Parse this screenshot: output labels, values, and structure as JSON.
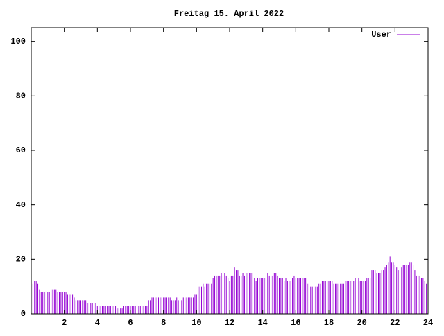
{
  "chart_data": {
    "type": "impulse",
    "title": "Freitag 15. April 2022",
    "series": [
      {
        "name": "User",
        "color": "#9400d3",
        "x": [
          0,
          0.1,
          0.2,
          0.3,
          0.4,
          0.5,
          0.6,
          0.7,
          0.8,
          0.9,
          1,
          1.1,
          1.2,
          1.3,
          1.4,
          1.5,
          1.6,
          1.7,
          1.8,
          1.9,
          2,
          2.1,
          2.2,
          2.3,
          2.4,
          2.5,
          2.6,
          2.7,
          2.8,
          2.9,
          3,
          3.1,
          3.2,
          3.3,
          3.4,
          3.5,
          3.6,
          3.7,
          3.8,
          3.9,
          4,
          4.1,
          4.2,
          4.3,
          4.4,
          4.5,
          4.6,
          4.7,
          4.8,
          4.9,
          5,
          5.1,
          5.2,
          5.3,
          5.4,
          5.5,
          5.6,
          5.7,
          5.8,
          5.9,
          6,
          6.1,
          6.2,
          6.3,
          6.4,
          6.5,
          6.6,
          6.7,
          6.8,
          6.9,
          7,
          7.1,
          7.2,
          7.3,
          7.4,
          7.5,
          7.6,
          7.7,
          7.8,
          7.9,
          8,
          8.1,
          8.2,
          8.3,
          8.4,
          8.5,
          8.6,
          8.7,
          8.8,
          8.9,
          9,
          9.1,
          9.2,
          9.3,
          9.4,
          9.5,
          9.6,
          9.7,
          9.8,
          9.9,
          10,
          10.1,
          10.2,
          10.3,
          10.4,
          10.5,
          10.6,
          10.7,
          10.8,
          10.9,
          11,
          11.1,
          11.2,
          11.3,
          11.4,
          11.5,
          11.6,
          11.7,
          11.8,
          11.9,
          12,
          12.1,
          12.2,
          12.3,
          12.4,
          12.5,
          12.6,
          12.7,
          12.8,
          12.9,
          13,
          13.1,
          13.2,
          13.3,
          13.4,
          13.5,
          13.6,
          13.7,
          13.8,
          13.9,
          14,
          14.1,
          14.2,
          14.3,
          14.4,
          14.5,
          14.6,
          14.7,
          14.8,
          14.9,
          15,
          15.1,
          15.2,
          15.3,
          15.4,
          15.5,
          15.6,
          15.7,
          15.8,
          15.9,
          16,
          16.1,
          16.2,
          16.3,
          16.4,
          16.5,
          16.6,
          16.7,
          16.8,
          16.9,
          17,
          17.1,
          17.2,
          17.3,
          17.4,
          17.5,
          17.6,
          17.7,
          17.8,
          17.9,
          18,
          18.1,
          18.2,
          18.3,
          18.4,
          18.5,
          18.6,
          18.7,
          18.8,
          18.9,
          19,
          19.1,
          19.2,
          19.3,
          19.4,
          19.5,
          19.6,
          19.7,
          19.8,
          19.9,
          20,
          20.1,
          20.2,
          20.3,
          20.4,
          20.5,
          20.6,
          20.7,
          20.8,
          20.9,
          21,
          21.1,
          21.2,
          21.3,
          21.4,
          21.5,
          21.6,
          21.7,
          21.8,
          21.9,
          22,
          22.1,
          22.2,
          22.3,
          22.4,
          22.5,
          22.6,
          22.7,
          22.8,
          22.9,
          23,
          23.1,
          23.2,
          23.3,
          23.4,
          23.5,
          23.6,
          23.7,
          23.8,
          23.9
        ],
        "values": [
          11,
          11,
          12,
          12,
          11,
          9,
          8,
          8,
          8,
          8,
          8,
          8,
          9,
          9,
          9,
          9,
          8,
          8,
          8,
          8,
          8,
          8,
          7,
          7,
          7,
          7,
          6,
          5,
          5,
          5,
          5,
          5,
          5,
          5,
          4,
          4,
          4,
          4,
          4,
          4,
          3,
          3,
          3,
          3,
          3,
          3,
          3,
          3,
          3,
          3,
          3,
          3,
          2,
          2,
          2,
          2,
          3,
          3,
          3,
          3,
          3,
          3,
          3,
          3,
          3,
          3,
          3,
          3,
          3,
          3,
          3,
          5,
          5,
          6,
          6,
          6,
          6,
          6,
          6,
          6,
          6,
          6,
          6,
          6,
          6,
          5,
          5,
          5,
          6,
          5,
          5,
          5,
          6,
          6,
          6,
          6,
          6,
          6,
          6,
          7,
          7,
          10,
          10,
          10,
          11,
          10,
          11,
          11,
          11,
          11,
          13,
          14,
          14,
          14,
          14,
          15,
          14,
          15,
          14,
          13,
          12,
          14,
          14,
          17,
          16,
          16,
          14,
          14,
          15,
          14,
          15,
          15,
          15,
          15,
          15,
          13,
          12,
          13,
          13,
          13,
          13,
          13,
          13,
          15,
          14,
          14,
          14,
          15,
          15,
          14,
          13,
          13,
          13,
          12,
          13,
          12,
          12,
          12,
          13,
          14,
          13,
          13,
          13,
          13,
          13,
          13,
          13,
          11,
          11,
          10,
          10,
          10,
          10,
          10,
          11,
          11,
          12,
          12,
          12,
          12,
          12,
          12,
          12,
          11,
          11,
          11,
          11,
          11,
          11,
          11,
          12,
          12,
          12,
          12,
          12,
          12,
          13,
          12,
          13,
          12,
          12,
          12,
          12,
          13,
          13,
          13,
          16,
          16,
          16,
          15,
          15,
          15,
          16,
          16,
          17,
          18,
          19,
          21,
          19,
          19,
          18,
          17,
          16,
          16,
          17,
          18,
          18,
          18,
          18,
          19,
          19,
          18,
          16,
          14,
          14,
          14,
          13,
          13,
          12,
          11
        ]
      }
    ],
    "xlim": [
      0,
      24
    ],
    "xticks": [
      2,
      4,
      6,
      8,
      10,
      12,
      14,
      16,
      18,
      20,
      22,
      24
    ],
    "ylim": [
      0,
      105
    ],
    "yticks": [
      0,
      20,
      40,
      60,
      80,
      100
    ],
    "legend": "upper right"
  }
}
